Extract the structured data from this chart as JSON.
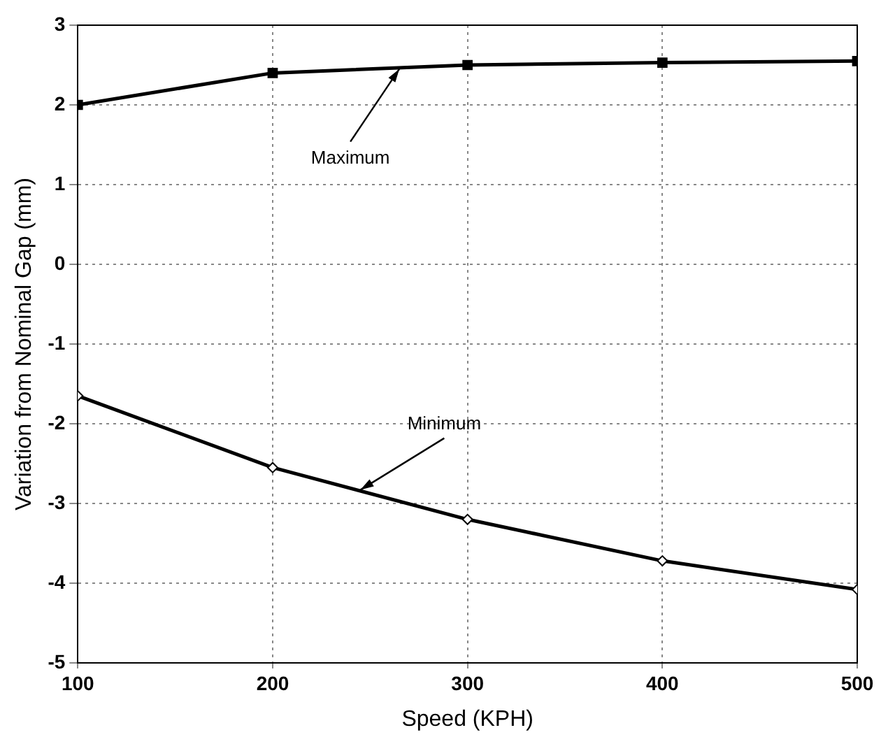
{
  "chart_data": {
    "type": "line",
    "xlabel": "Speed (KPH)",
    "ylabel": "Variation from Nominal Gap (mm)",
    "x": [
      100,
      200,
      300,
      400,
      500
    ],
    "series": [
      {
        "color": "#000000",
        "marker": "square",
        "values": [
          2.0,
          2.4,
          2.5,
          2.53,
          2.55
        ]
      },
      {
        "color": "#000000",
        "marker": "diamond",
        "values": [
          -1.65,
          -2.55,
          -3.2,
          -3.72,
          -4.08
        ]
      }
    ],
    "xlim": [
      100,
      500
    ],
    "xticks": [
      100,
      200,
      300,
      400,
      500
    ],
    "ylim": [
      -5,
      3
    ],
    "yticks": [
      -5,
      -4,
      -3,
      -2,
      -1,
      0,
      1,
      2,
      3
    ],
    "grid": true,
    "legend": false,
    "line_style": "solid",
    "annotations": [
      {
        "text": "Maximum",
        "x": 265,
        "y": 2.45
      },
      {
        "text": "Minimum",
        "x": 245,
        "y": -2.83
      }
    ]
  }
}
